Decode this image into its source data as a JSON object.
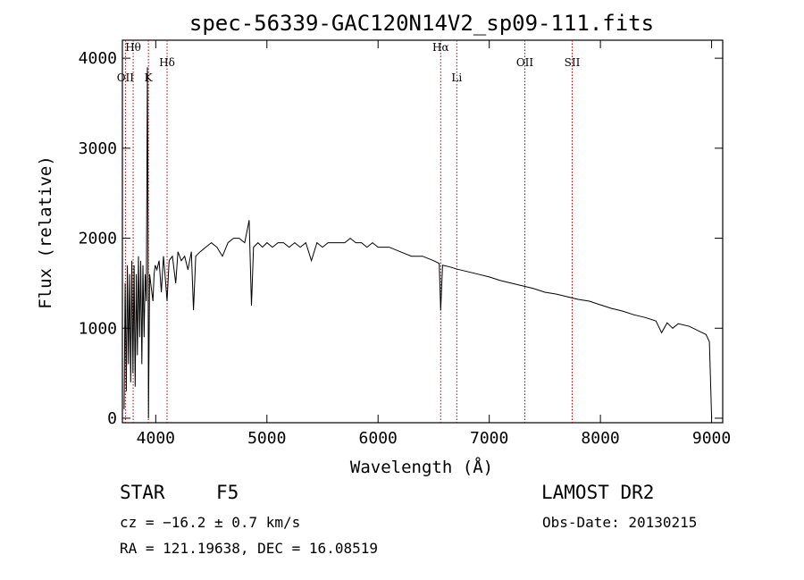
{
  "chart_data": {
    "type": "line",
    "title": "spec-56339-GAC120N14V2_sp09-111.fits",
    "xlabel": "Wavelength (Å)",
    "ylabel": "Flux (relative)",
    "xlim": [
      3700,
      9100
    ],
    "ylim": [
      -50,
      4200
    ],
    "xticks": [
      4000,
      5000,
      6000,
      7000,
      8000,
      9000
    ],
    "yticks": [
      0,
      1000,
      2000,
      3000,
      4000
    ],
    "grid": false,
    "lines": [
      {
        "label": "Hθ",
        "x": 3797
      },
      {
        "label": "OII",
        "x": 3727
      },
      {
        "label": "K",
        "x": 3934
      },
      {
        "label": "Hδ",
        "x": 4102
      },
      {
        "label": "Hα",
        "x": 6563
      },
      {
        "label": "Li",
        "x": 6708
      },
      {
        "label": "OII",
        "x": 7320
      },
      {
        "label": "SII",
        "x": 7746
      }
    ],
    "series": [
      {
        "x": [
          3715,
          3725,
          3735,
          3745,
          3755,
          3765,
          3775,
          3785,
          3795,
          3805,
          3815,
          3825,
          3835,
          3845,
          3855,
          3865,
          3875,
          3885,
          3895,
          3905,
          3915,
          3925,
          3930,
          3935,
          3945,
          3955,
          3965,
          3975,
          3985,
          3995,
          4010,
          4030,
          4050,
          4070,
          4090,
          4102,
          4120,
          4150,
          4180,
          4200,
          4230,
          4260,
          4290,
          4320,
          4340,
          4360,
          4400,
          4450,
          4500,
          4550,
          4600,
          4650,
          4700,
          4750,
          4800,
          4840,
          4861,
          4880,
          4920,
          4960,
          5000,
          5050,
          5100,
          5150,
          5200,
          5250,
          5300,
          5350,
          5400,
          5450,
          5500,
          5550,
          5600,
          5650,
          5700,
          5750,
          5800,
          5850,
          5900,
          5950,
          6000,
          6100,
          6200,
          6300,
          6400,
          6500,
          6550,
          6563,
          6580,
          6650,
          6700,
          6800,
          6900,
          7000,
          7100,
          7200,
          7300,
          7400,
          7500,
          7600,
          7700,
          7800,
          7900,
          8000,
          8100,
          8200,
          8300,
          8400,
          8500,
          8550,
          8600,
          8650,
          8700,
          8800,
          8900,
          8950,
          8980,
          9000
        ],
        "y": [
          100,
          1500,
          300,
          1700,
          600,
          1600,
          400,
          1750,
          500,
          1700,
          350,
          1600,
          700,
          1800,
          900,
          1750,
          600,
          1700,
          900,
          1600,
          1300,
          3900,
          2500,
          0,
          1600,
          1500,
          1400,
          1300,
          1600,
          1700,
          1650,
          1750,
          1400,
          1800,
          1500,
          1300,
          1750,
          1800,
          1500,
          1850,
          1750,
          1800,
          1650,
          1850,
          1200,
          1800,
          1850,
          1900,
          1950,
          1900,
          1800,
          1950,
          2000,
          2000,
          1950,
          2200,
          1250,
          1900,
          1950,
          1900,
          1950,
          1900,
          1950,
          1950,
          1900,
          1950,
          1900,
          1950,
          1750,
          1950,
          1900,
          1950,
          1950,
          1950,
          1950,
          2000,
          1950,
          1950,
          1900,
          1950,
          1900,
          1900,
          1850,
          1800,
          1800,
          1750,
          1720,
          1200,
          1700,
          1680,
          1660,
          1630,
          1600,
          1570,
          1530,
          1500,
          1470,
          1440,
          1400,
          1380,
          1350,
          1320,
          1300,
          1260,
          1220,
          1190,
          1150,
          1120,
          1080,
          950,
          1060,
          1000,
          1050,
          1020,
          960,
          930,
          850,
          0
        ]
      }
    ]
  },
  "info": {
    "class_label": "STAR",
    "subclass": "F5",
    "survey": "LAMOST DR2",
    "cz": "cz = −16.2 ± 0.7 km/s",
    "obs_date": "Obs-Date: 20130215",
    "coords": "RA = 121.19638, DEC =  16.08519"
  }
}
